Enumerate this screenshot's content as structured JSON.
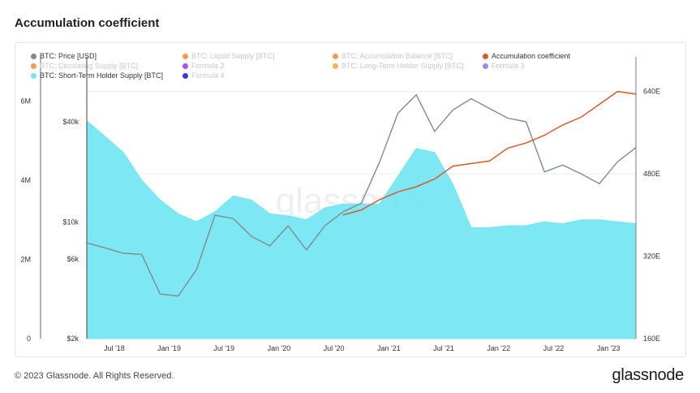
{
  "page": {
    "title": "Accumulation coefficient",
    "copyright": "© 2023 Glassnode. All Rights Reserved.",
    "logo_text": "glassnode",
    "watermark_text": "glassnode"
  },
  "legend": [
    {
      "label": "BTC: Price [USD]",
      "color": "#808a8c",
      "active": true
    },
    {
      "label": "BTC: Liquid Supply [BTC]",
      "color": "#f28b2f",
      "active": false
    },
    {
      "label": "BTC: Accumulation Balance [BTC]",
      "color": "#f28b2f",
      "active": false
    },
    {
      "label": "Accumulation coefficient",
      "color": "#d95a2b",
      "active": true
    },
    {
      "label": "BTC: Circulating Supply [BTC]",
      "color": "#f28b2f",
      "active": false
    },
    {
      "label": "Formula 2",
      "color": "#9b30ff",
      "active": false
    },
    {
      "label": "BTC: Long-Term Holder Supply [BTC]",
      "color": "#f2a72f",
      "active": false
    },
    {
      "label": "Formula 3",
      "color": "#7b7be0",
      "active": false
    },
    {
      "label": "BTC: Short-Term Holder Supply [BTC]",
      "color": "#6fe6f2",
      "active": true
    },
    {
      "label": "Formula 4",
      "color": "#1a1acc",
      "active": false
    }
  ],
  "chart_data": {
    "type": "area",
    "title": "Accumulation coefficient",
    "x_ticks": [
      "Jul '18",
      "Jan '19",
      "Jul '19",
      "Jan '20",
      "Jul '20",
      "Jan '21",
      "Jul '21",
      "Jan '22",
      "Jul '22",
      "Jan '23"
    ],
    "axes": {
      "left_supply": {
        "ticks": [
          "0",
          "2M",
          "4M",
          "6M"
        ],
        "range": [
          0,
          6500000
        ],
        "scale": "linear"
      },
      "price": {
        "ticks": [
          "$2k",
          "$6k",
          "$10k",
          "$40k"
        ],
        "range": [
          2000,
          70000
        ],
        "scale": "log"
      },
      "right_coefficient": {
        "ticks": [
          "160E",
          "320E",
          "480E",
          "640E"
        ],
        "range": [
          160,
          660
        ],
        "scale": "linear"
      }
    },
    "x": [
      "2018-04",
      "2018-06",
      "2018-08",
      "2018-10",
      "2018-12",
      "2019-02",
      "2019-04",
      "2019-06",
      "2019-08",
      "2019-10",
      "2019-12",
      "2020-02",
      "2020-04",
      "2020-06",
      "2020-08",
      "2020-10",
      "2020-12",
      "2021-02",
      "2021-04",
      "2021-06",
      "2021-08",
      "2021-10",
      "2021-12",
      "2022-02",
      "2022-04",
      "2022-06",
      "2022-08",
      "2022-10",
      "2022-12",
      "2023-02",
      "2023-04"
    ],
    "series": [
      {
        "name": "BTC: Short-Term Holder Supply [BTC]",
        "axis": "left_supply",
        "color": "#6fe6f2",
        "values": [
          5500000,
          5100000,
          4700000,
          4000000,
          3500000,
          3150000,
          2950000,
          3200000,
          3600000,
          3500000,
          3150000,
          3100000,
          3000000,
          3300000,
          3400000,
          3400000,
          3400000,
          4100000,
          4800000,
          4700000,
          3900000,
          2800000,
          2800000,
          2850000,
          2850000,
          2950000,
          2900000,
          3000000,
          3000000,
          2950000,
          2900000
        ]
      },
      {
        "name": "BTC: Price [USD]",
        "axis": "price",
        "color": "#808a8c",
        "values": [
          7500,
          7000,
          6500,
          6400,
          3700,
          3600,
          5200,
          11000,
          10500,
          8200,
          7200,
          9500,
          6800,
          9500,
          11500,
          13000,
          23000,
          45000,
          58000,
          35000,
          47000,
          55000,
          48000,
          42000,
          40000,
          20000,
          22000,
          19500,
          17000,
          23000,
          28000
        ]
      },
      {
        "name": "Accumulation coefficient",
        "axis": "right_coefficient",
        "color": "#d95a2b",
        "values": [
          null,
          null,
          null,
          null,
          null,
          null,
          null,
          null,
          null,
          null,
          null,
          null,
          null,
          null,
          400,
          410,
          430,
          445,
          455,
          470,
          495,
          500,
          505,
          530,
          540,
          555,
          575,
          590,
          615,
          640,
          635
        ]
      }
    ]
  }
}
